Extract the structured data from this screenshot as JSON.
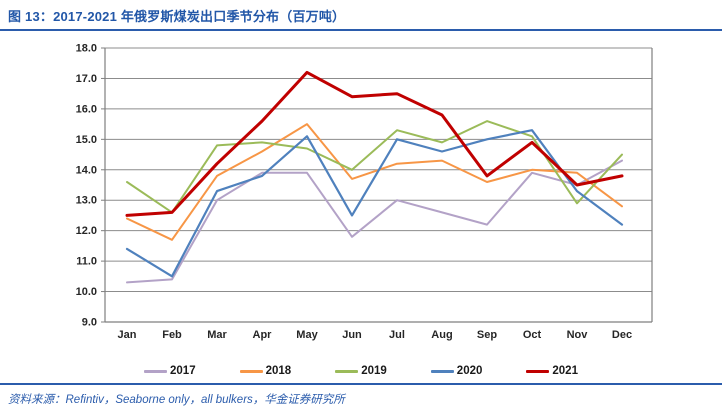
{
  "title": "图 13：2017-2021 年俄罗斯煤炭出口季节分布（百万吨）",
  "source_note": "资料来源：Refintiv，Seaborne only，all bulkers，华金证券研究所",
  "accent_color": "#2b5cac",
  "chart_data": {
    "type": "line",
    "title": "2017-2021 年俄罗斯煤炭出口季节分布（百万吨）",
    "categories": [
      "Jan",
      "Feb",
      "Mar",
      "Apr",
      "May",
      "Jun",
      "Jul",
      "Aug",
      "Sep",
      "Oct",
      "Nov",
      "Dec"
    ],
    "series": [
      {
        "name": "2017",
        "color": "#b3a2c7",
        "line_width": 2,
        "values": [
          10.3,
          10.4,
          13.0,
          13.9,
          13.9,
          11.8,
          13.0,
          12.6,
          12.2,
          13.9,
          13.5,
          14.3
        ]
      },
      {
        "name": "2018",
        "color": "#f79646",
        "line_width": 2,
        "values": [
          12.4,
          11.7,
          13.8,
          14.6,
          15.5,
          13.7,
          14.2,
          14.3,
          13.6,
          14.0,
          13.9,
          12.8
        ]
      },
      {
        "name": "2019",
        "color": "#9bbb59",
        "line_width": 2,
        "values": [
          13.6,
          12.6,
          14.8,
          14.9,
          14.7,
          14.0,
          15.3,
          14.9,
          15.6,
          15.1,
          12.9,
          14.5
        ]
      },
      {
        "name": "2020",
        "color": "#4f81bd",
        "line_width": 2.2,
        "values": [
          11.4,
          10.5,
          13.3,
          13.8,
          15.1,
          12.5,
          15.0,
          14.6,
          15.0,
          15.3,
          13.3,
          12.2
        ]
      },
      {
        "name": "2021",
        "color": "#c00000",
        "line_width": 3,
        "values": [
          12.5,
          12.6,
          14.2,
          15.6,
          17.2,
          16.4,
          16.5,
          15.8,
          13.8,
          14.9,
          13.5,
          13.8
        ]
      }
    ],
    "xlabel": "",
    "ylabel": "",
    "ylim": [
      9.0,
      18.0
    ],
    "ytick_step": 1.0,
    "ytick_labels": [
      "9.0",
      "10.0",
      "11.0",
      "12.0",
      "13.0",
      "14.0",
      "15.0",
      "16.0",
      "17.0",
      "18.0"
    ],
    "grid": true,
    "legend_position": "bottom",
    "gridline_color": "#8c8c8c",
    "axis_color": "#7f7f7f",
    "tick_label_color": "#262626"
  }
}
